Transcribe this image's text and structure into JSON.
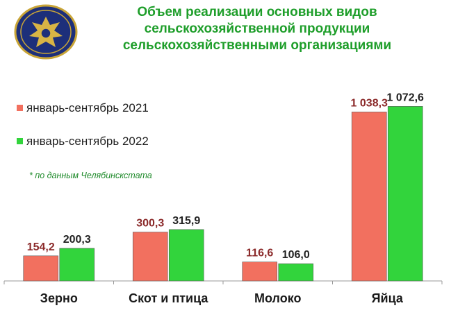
{
  "header": {
    "title_lines": [
      "Объем реализации основных видов",
      "сельскохозяйственной продукции",
      "сельскохозяйственными организациями"
    ]
  },
  "note": "* по данным Челябинскстата",
  "colors": {
    "series_2021": "#f2705f",
    "series_2022": "#32d43c",
    "title": "#1e9e2a",
    "label_2021": "#8b2a2a"
  },
  "chart_data": {
    "type": "bar",
    "categories": [
      "Зерно",
      "Скот и птица",
      "Молоко",
      "Яйца"
    ],
    "series": [
      {
        "name": "январь-сентябрь 2021",
        "values": [
          154.2,
          300.3,
          116.6,
          1038.3
        ],
        "labels": [
          "154,2",
          "300,3",
          "116,6",
          "1 038,3"
        ]
      },
      {
        "name": "январь-сентябрь 2022",
        "values": [
          200.3,
          315.9,
          106.0,
          1072.6
        ],
        "labels": [
          "200,3",
          "315,9",
          "106,0",
          "1 072,6"
        ]
      }
    ],
    "ylim": [
      0,
      1300
    ],
    "legend": "top-left",
    "grid": false
  }
}
